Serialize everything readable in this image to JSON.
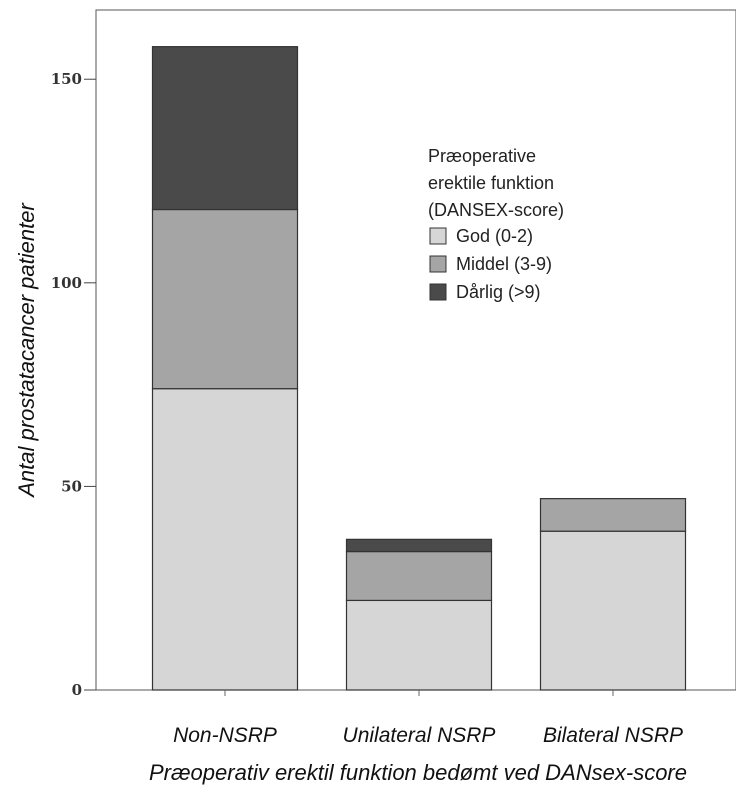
{
  "chart_data": {
    "type": "bar",
    "stacked": true,
    "categories": [
      "Non-NSRP",
      "Unilateral NSRP",
      "Bilateral NSRP"
    ],
    "series": [
      {
        "name": "God (0-2)",
        "values": [
          74,
          22,
          39
        ],
        "color": "#d6d6d6"
      },
      {
        "name": "Middel (3-9)",
        "values": [
          44,
          12,
          8
        ],
        "color": "#a5a5a5"
      },
      {
        "name": "Dårlig (>9)",
        "values": [
          40,
          3,
          0
        ],
        "color": "#4a4a4a"
      }
    ],
    "xlabel": "Præoperativ erektil funktion bedømt ved DANsex-score",
    "ylabel": "Antal prostatacancer patienter",
    "ylim": [
      0,
      167
    ],
    "yticks": [
      0,
      50,
      100,
      150
    ],
    "legend": {
      "title_lines": [
        "Præoperative",
        "erektile funktion",
        "(DANSEX-score)"
      ],
      "placement": "top-right"
    },
    "grid": false
  }
}
